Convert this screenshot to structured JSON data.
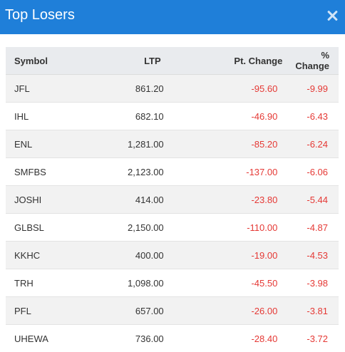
{
  "modal": {
    "title": "Top Losers",
    "close_icon": "close-icon",
    "header_color": "#1f7fd9",
    "negative_color": "#e53935"
  },
  "table": {
    "headers": {
      "symbol": "Symbol",
      "ltp": "LTP",
      "pt_change": "Pt. Change",
      "pct_change": "% Change"
    },
    "rows": [
      {
        "symbol": "JFL",
        "ltp": "861.20",
        "pt_change": "-95.60",
        "pct_change": "-9.99"
      },
      {
        "symbol": "IHL",
        "ltp": "682.10",
        "pt_change": "-46.90",
        "pct_change": "-6.43"
      },
      {
        "symbol": "ENL",
        "ltp": "1,281.00",
        "pt_change": "-85.20",
        "pct_change": "-6.24"
      },
      {
        "symbol": "SMFBS",
        "ltp": "2,123.00",
        "pt_change": "-137.00",
        "pct_change": "-6.06"
      },
      {
        "symbol": "JOSHI",
        "ltp": "414.00",
        "pt_change": "-23.80",
        "pct_change": "-5.44"
      },
      {
        "symbol": "GLBSL",
        "ltp": "2,150.00",
        "pt_change": "-110.00",
        "pct_change": "-4.87"
      },
      {
        "symbol": "KKHC",
        "ltp": "400.00",
        "pt_change": "-19.00",
        "pct_change": "-4.53"
      },
      {
        "symbol": "TRH",
        "ltp": "1,098.00",
        "pt_change": "-45.50",
        "pct_change": "-3.98"
      },
      {
        "symbol": "PFL",
        "ltp": "657.00",
        "pt_change": "-26.00",
        "pct_change": "-3.81"
      },
      {
        "symbol": "UHEWA",
        "ltp": "736.00",
        "pt_change": "-28.40",
        "pct_change": "-3.72"
      }
    ]
  }
}
